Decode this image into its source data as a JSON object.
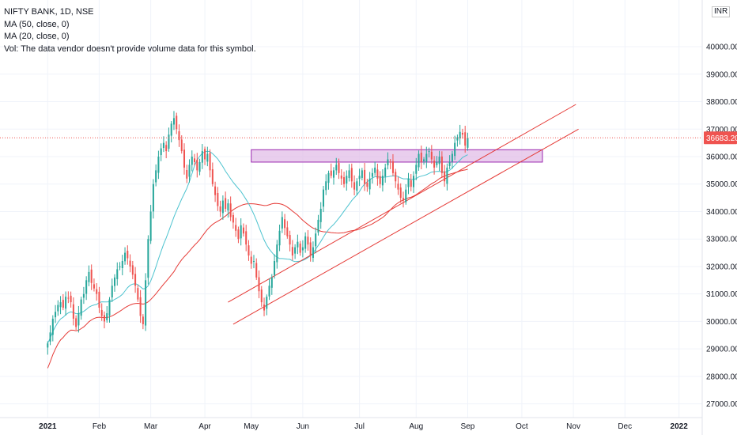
{
  "legend": {
    "symbol": "NIFTY BANK, 1D, NSE",
    "ma50": "MA (50, close, 0)",
    "ma20": "MA (20, close, 0)",
    "volume_note": "Vol: The data vendor doesn't provide volume data for this symbol."
  },
  "currency_label": "INR",
  "current_price_label": "36683.20",
  "colors": {
    "up": "#26a69a",
    "down": "#ef5350",
    "ma50": "#e53935",
    "ma20": "#4dc3cf",
    "trendline": "#e53935",
    "zone_fill": "#e1bee7",
    "zone_border": "#9c27b0",
    "price_line": "#ef5350",
    "price_tag": "#ef5350",
    "grid": "#f0f3fa"
  },
  "chart_data": {
    "type": "candlestick",
    "title": "NIFTY BANK, 1D, NSE",
    "ylim": [
      26500,
      41700
    ],
    "y_ticks": [
      27000,
      28000,
      29000,
      30000,
      31000,
      32000,
      33000,
      34000,
      35000,
      36000,
      37000,
      38000,
      39000,
      40000
    ],
    "y_tick_labels": [
      "27000.00",
      "28000.00",
      "29000.00",
      "30000.00",
      "31000.00",
      "32000.00",
      "33000.00",
      "34000.00",
      "35000.00",
      "36000.00",
      "37000.00",
      "38000.00",
      "39000.00",
      "40000.00"
    ],
    "x_ticks": [
      {
        "label": "2021",
        "day": 0,
        "bold": true
      },
      {
        "label": "Feb",
        "day": 20
      },
      {
        "label": "Mar",
        "day": 40
      },
      {
        "label": "Apr",
        "day": 61
      },
      {
        "label": "May",
        "day": 79
      },
      {
        "label": "Jun",
        "day": 99
      },
      {
        "label": "Jul",
        "day": 121
      },
      {
        "label": "Aug",
        "day": 143
      },
      {
        "label": "Sep",
        "day": 163
      },
      {
        "label": "Oct",
        "day": 184
      },
      {
        "label": "Nov",
        "day": 204
      },
      {
        "label": "Dec",
        "day": 224
      },
      {
        "label": "2022",
        "day": 245,
        "bold": true
      }
    ],
    "x_range_days": [
      -18.5,
      254
    ],
    "closes": [
      29200,
      29600,
      30100,
      30350,
      30600,
      30700,
      30500,
      30900,
      30850,
      30700,
      30100,
      29800,
      30300,
      30800,
      31000,
      31500,
      31800,
      31400,
      31200,
      31000,
      30500,
      30200,
      30000,
      30300,
      30800,
      31300,
      31600,
      31900,
      32000,
      32200,
      32500,
      32300,
      32000,
      31700,
      31300,
      30800,
      30200,
      29900,
      31500,
      33000,
      34000,
      35000,
      35500,
      36000,
      36300,
      36500,
      36200,
      36800,
      37200,
      37400,
      37000,
      36600,
      36200,
      35600,
      35200,
      35700,
      36000,
      35800,
      35500,
      35800,
      36200,
      35900,
      36100,
      35500,
      35000,
      34600,
      34200,
      34000,
      34400,
      34100,
      34300,
      33800,
      33600,
      33300,
      33000,
      33500,
      33200,
      32800,
      32400,
      32100,
      32200,
      31600,
      31100,
      30700,
      30400,
      30900,
      31300,
      31600,
      32200,
      32800,
      33300,
      33800,
      33400,
      33100,
      32800,
      32400,
      32700,
      32900,
      32500,
      32700,
      33100,
      32800,
      32400,
      32700,
      33200,
      33700,
      34100,
      34800,
      35100,
      35400,
      35300,
      35500,
      35700,
      35400,
      35200,
      35000,
      35300,
      35500,
      35100,
      34800,
      35100,
      35300,
      35500,
      35000,
      34900,
      35200,
      35400,
      35600,
      35200,
      35000,
      35300,
      35600,
      35900,
      35800,
      35400,
      35100,
      34800,
      34500,
      34400,
      34800,
      35200,
      34900,
      35300,
      35700,
      36100,
      35800,
      35900,
      36100,
      36200,
      35900,
      35600,
      35800,
      36000,
      35400,
      35100,
      35600,
      35800,
      36100,
      36500,
      36700,
      36900,
      36800,
      36400,
      36683
    ],
    "ma20_start": 36,
    "ma50_start": 0,
    "zone": {
      "day_start": 79,
      "day_end": 192,
      "low": 35800,
      "high": 36250
    },
    "trendlines": [
      {
        "day0": 70,
        "p0": 30700,
        "day1": 205,
        "p1": 37900
      },
      {
        "day0": 72,
        "p0": 29900,
        "day1": 206,
        "p1": 37000
      }
    ],
    "last_price": 36683.2
  }
}
